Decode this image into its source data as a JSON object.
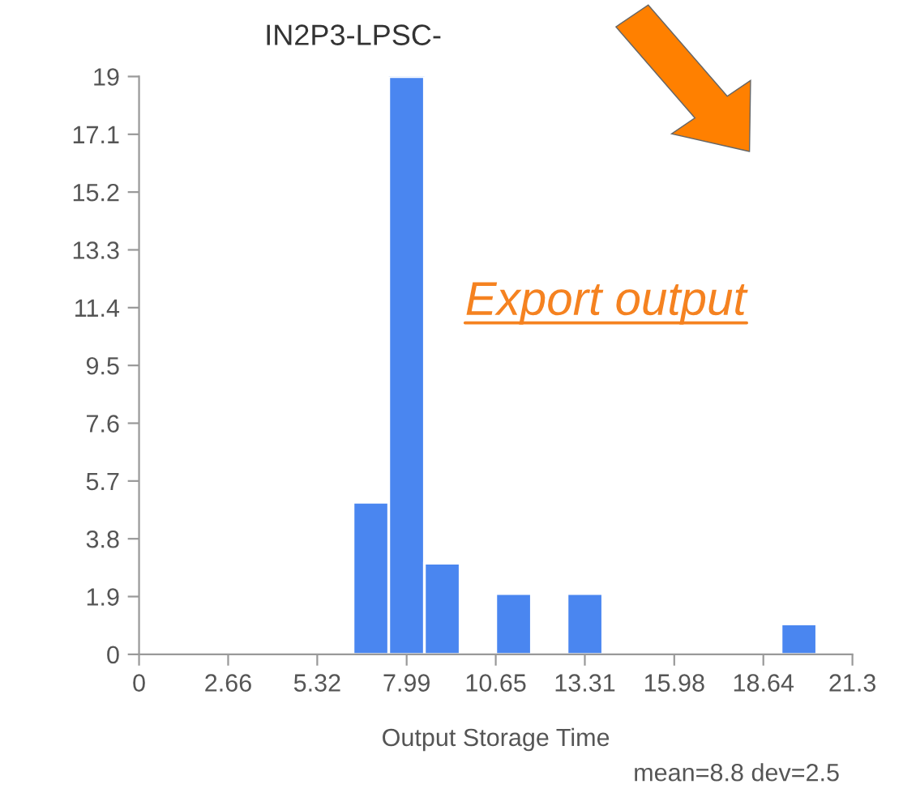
{
  "chart_data": {
    "type": "histogram",
    "title": "IN2P3-LPSC-",
    "xlabel": "Output Storage Time",
    "annotations": [
      "Export output",
      "mean=8.8 dev=2.5"
    ],
    "bins": [
      0,
      1.065,
      2.13,
      3.195,
      4.26,
      5.325,
      6.39,
      7.455,
      8.52,
      9.585,
      10.65,
      11.715,
      12.78,
      13.845,
      14.91,
      15.975,
      17.04,
      18.105,
      19.17,
      20.235,
      21.3
    ],
    "values": [
      0,
      0,
      0,
      0,
      0,
      0,
      5,
      19,
      3,
      0,
      2,
      0,
      2,
      0,
      0,
      0,
      0,
      0,
      1,
      0
    ],
    "color": "#4a86f0",
    "xlim": [
      0,
      21.3
    ],
    "xticks": [
      0,
      2.66,
      5.32,
      7.99,
      10.65,
      13.31,
      15.98,
      18.64,
      21.3
    ],
    "ylim": [
      0,
      19
    ],
    "yticks": [
      0,
      1.9,
      3.8,
      5.7,
      7.6,
      9.5,
      11.4,
      13.3,
      15.2,
      17.1,
      19
    ],
    "grid": false
  }
}
